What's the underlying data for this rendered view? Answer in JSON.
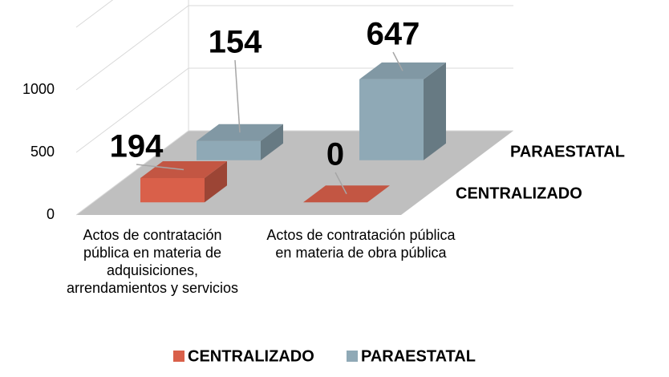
{
  "chart_data": {
    "type": "bar3d",
    "categories": [
      "Actos de contratación pública en materia de adquisiciones, arrendamientos y servicios",
      "Actos de contratación pública en materia de obra pública"
    ],
    "series": [
      {
        "name": "CENTRALIZADO",
        "color": "#d9604a",
        "values": [
          194,
          0
        ]
      },
      {
        "name": "PARAESTATAL",
        "color": "#8fa9b6",
        "values": [
          154,
          647
        ]
      }
    ],
    "ylim": [
      0,
      1500
    ],
    "yticks": [
      0,
      500,
      1000
    ],
    "grid": true,
    "legend": "bottom"
  }
}
